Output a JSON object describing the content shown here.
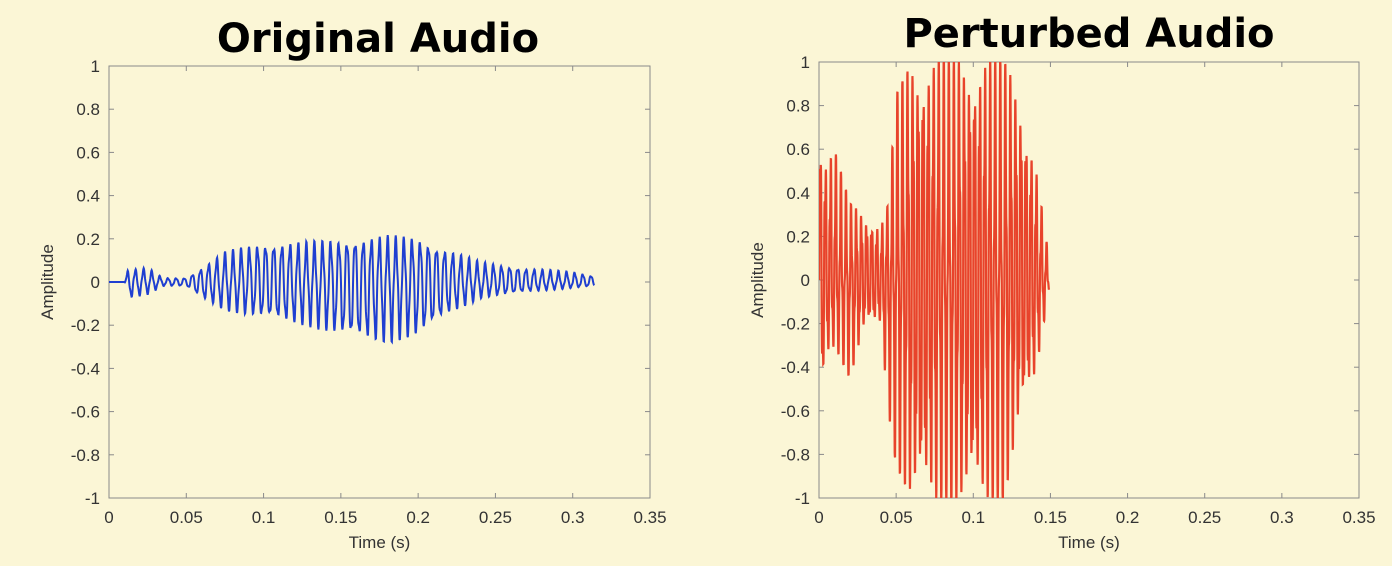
{
  "chart_data": [
    {
      "type": "line",
      "title": "Original Audio",
      "xlabel": "Time (s)",
      "ylabel": "Amplitude",
      "xlim": [
        0,
        0.35
      ],
      "ylim": [
        -1,
        1
      ],
      "xticks": [
        "0",
        "0.05",
        "0.1",
        "0.15",
        "0.2",
        "0.25",
        "0.3",
        "0.35"
      ],
      "yticks": [
        "1",
        "0.8",
        "0.6",
        "0.4",
        "0.2",
        "0",
        "-0.2",
        "-0.4",
        "-0.6",
        "-0.8",
        "-1"
      ],
      "grid": false,
      "color": "#1f3fd1",
      "series": [
        {
          "duration": 0.314,
          "envelope": [
            [
              0,
              0
            ],
            [
              0.01,
              0
            ],
            [
              0.012,
              0.06
            ],
            [
              0.025,
              0.07
            ],
            [
              0.035,
              0.02
            ],
            [
              0.05,
              0.02
            ],
            [
              0.06,
              0.07
            ],
            [
              0.075,
              0.15
            ],
            [
              0.1,
              0.2
            ],
            [
              0.13,
              0.2
            ],
            [
              0.16,
              0.22
            ],
            [
              0.18,
              0.23
            ],
            [
              0.2,
              0.22
            ],
            [
              0.22,
              0.16
            ],
            [
              0.24,
              0.1
            ],
            [
              0.27,
              0.07
            ],
            [
              0.3,
              0.05
            ],
            [
              0.314,
              0.03
            ]
          ],
          "negative_envelope": [
            [
              0,
              0
            ],
            [
              0.01,
              0
            ],
            [
              0.012,
              -0.08
            ],
            [
              0.025,
              -0.06
            ],
            [
              0.035,
              -0.02
            ],
            [
              0.05,
              -0.02
            ],
            [
              0.06,
              -0.08
            ],
            [
              0.075,
              -0.14
            ],
            [
              0.1,
              -0.18
            ],
            [
              0.13,
              -0.22
            ],
            [
              0.16,
              -0.29
            ],
            [
              0.18,
              -0.3
            ],
            [
              0.2,
              -0.27
            ],
            [
              0.22,
              -0.16
            ],
            [
              0.24,
              -0.08
            ],
            [
              0.27,
              -0.05
            ],
            [
              0.3,
              -0.03
            ],
            [
              0.314,
              -0.02
            ]
          ]
        }
      ]
    },
    {
      "type": "line",
      "title": "Perturbed Audio",
      "xlabel": "Time (s)",
      "ylabel": "Amplitude",
      "xlim": [
        0,
        0.35
      ],
      "ylim": [
        -1,
        1
      ],
      "xticks": [
        "0",
        "0.05",
        "0.1",
        "0.15",
        "0.2",
        "0.25",
        "0.3",
        "0.35"
      ],
      "yticks": [
        "1",
        "0.8",
        "0.6",
        "0.4",
        "0.2",
        "0",
        "-0.2",
        "-0.4",
        "-0.6",
        "-0.8",
        "-1"
      ],
      "grid": false,
      "color": "#e8432b",
      "series": [
        {
          "duration": 0.149,
          "envelope": [
            [
              0,
              0.7
            ],
            [
              0.005,
              0.55
            ],
            [
              0.01,
              0.6
            ],
            [
              0.02,
              0.35
            ],
            [
              0.03,
              0.3
            ],
            [
              0.04,
              0.25
            ],
            [
              0.045,
              0.35
            ],
            [
              0.05,
              0.85
            ],
            [
              0.06,
              1
            ],
            [
              0.09,
              1
            ],
            [
              0.11,
              1
            ],
            [
              0.12,
              1
            ],
            [
              0.13,
              0.85
            ],
            [
              0.14,
              0.55
            ],
            [
              0.149,
              0.1
            ]
          ],
          "negative_envelope": [
            [
              0,
              -0.6
            ],
            [
              0.005,
              -0.35
            ],
            [
              0.01,
              -0.3
            ],
            [
              0.02,
              -0.45
            ],
            [
              0.03,
              -0.2
            ],
            [
              0.04,
              -0.2
            ],
            [
              0.045,
              -0.6
            ],
            [
              0.05,
              -0.85
            ],
            [
              0.06,
              -1
            ],
            [
              0.09,
              -1
            ],
            [
              0.11,
              -1
            ],
            [
              0.12,
              -1
            ],
            [
              0.13,
              -0.65
            ],
            [
              0.14,
              -0.45
            ],
            [
              0.149,
              -0.05
            ]
          ]
        }
      ]
    }
  ]
}
